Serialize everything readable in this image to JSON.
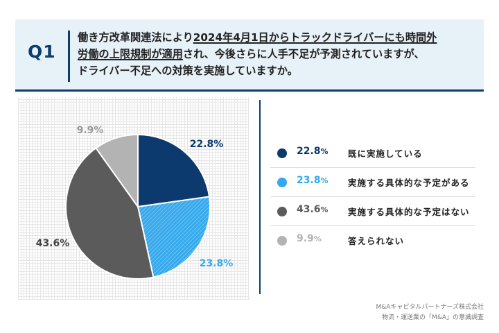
{
  "question": {
    "number": "Q1",
    "line1_pre": "働き方改革関連法により",
    "line1_ul": "2024年4月1日からトラックドライバーにも時間外",
    "line2_ul": "労働の上限規制が適用",
    "line2_post": "され、今後さらに人手不足が予測されていますが、",
    "line3": "ドライバー不足への対策を実施していますか。"
  },
  "colors": {
    "dark_navy": "#0d3a6e",
    "light_blue": "#35a9ec",
    "dark_gray": "#5b5b5b",
    "light_gray": "#b3b3b3",
    "accent": "#0b3d6e"
  },
  "chart_data": {
    "type": "pie",
    "start_angle": "12 o'clock, clockwise",
    "slices": [
      {
        "label": "既に実施している",
        "value": 22.8,
        "display": "22.8%",
        "color": "#0d3a6e",
        "pattern": "none"
      },
      {
        "label": "実施する具体的な予定がある",
        "value": 23.8,
        "display": "23.8%",
        "color": "#35a9ec",
        "pattern": "diagonal-hatch"
      },
      {
        "label": "実施する具体的な予定はない",
        "value": 43.6,
        "display": "43.6%",
        "color": "#5b5b5b",
        "pattern": "none"
      },
      {
        "label": "答えられない",
        "value": 9.9,
        "display": "9.9%",
        "color": "#b3b3b3",
        "pattern": "none"
      }
    ]
  },
  "legend": [
    {
      "value": "22.8",
      "unit": "%",
      "label": "既に実施している",
      "color": "#0d3a6e"
    },
    {
      "value": "23.8",
      "unit": "%",
      "label": "実施する具体的な予定がある",
      "color": "#35a9ec"
    },
    {
      "value": "43.6",
      "unit": "%",
      "label": "実施する具体的な予定はない",
      "color": "#5b5b5b"
    },
    {
      "value": "9.9",
      "unit": "%",
      "label": "答えられない",
      "color": "#b3b3b3"
    }
  ],
  "source": {
    "line1": "M&Aキャピタルパートナーズ株式会社",
    "line2": "物流・運送業の「M&A」の意識調査"
  }
}
